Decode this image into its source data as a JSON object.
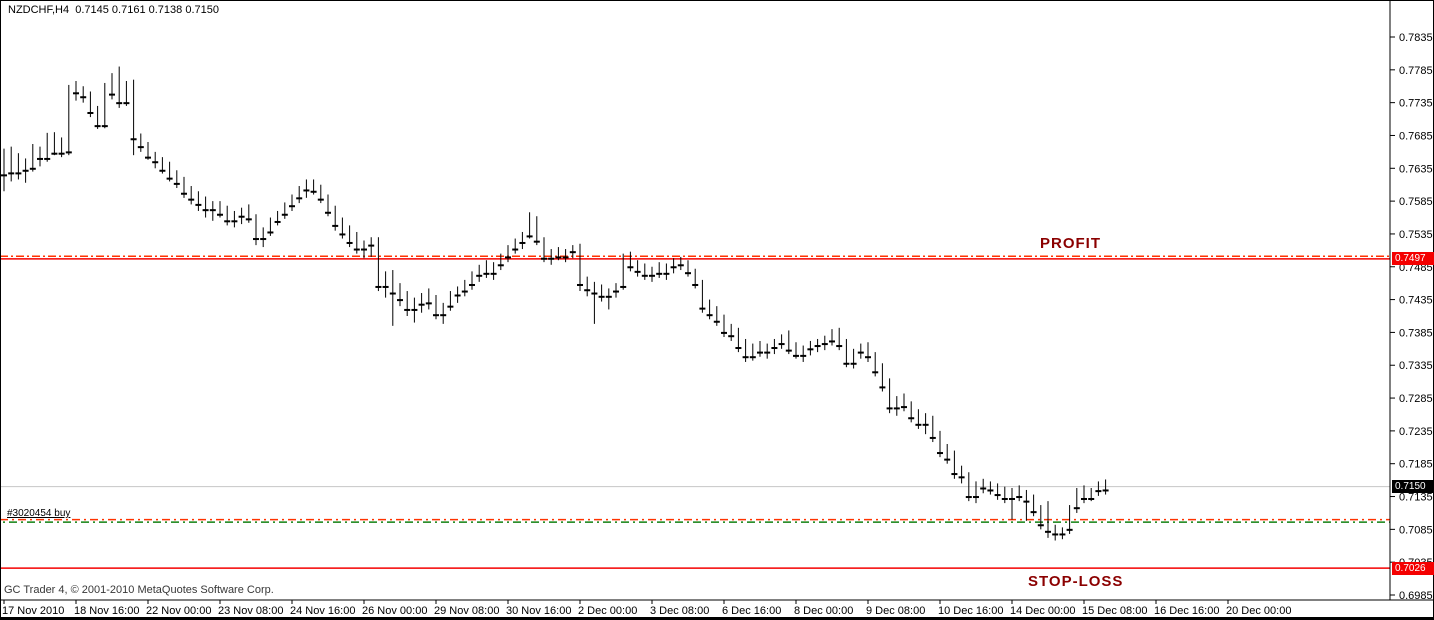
{
  "window": {
    "title": "NZDCHF,H4  0.7145 0.7161 0.7138 0.7150",
    "copyright": "GC Trader 4, © 2001-2010 MetaQuotes Software Corp."
  },
  "annotations": {
    "profit_label": "PROFIT",
    "stop_loss_label": "STOP-LOSS",
    "order_label": "#3020454 buy"
  },
  "badges": {
    "take_profit": "0.7497",
    "current_price": "0.7150",
    "stop_loss": "0.7026"
  },
  "colors": {
    "solid_line_red": "#f40000",
    "dash_line_orange": "#ff3300",
    "dash_line_green": "#108010",
    "current_price_gray": "#c6c6c6",
    "badge_red_bg": "#f40000",
    "badge_black_bg": "#000000",
    "annotation_maroon": "#8b0000",
    "bull_candle": "#ffffff",
    "bear_candle": "#000000",
    "candle_outline": "#000000"
  },
  "chart_data": {
    "type": "candlestick",
    "symbol": "NZDCHF",
    "timeframe": "H4",
    "current_bar": {
      "open": 0.7145,
      "high": 0.7161,
      "low": 0.7138,
      "close": 0.715
    },
    "levels": {
      "take_profit_line": 0.7497,
      "order_tp_dash_line": 0.7501,
      "order_open_line": 0.7098,
      "stop_loss_line": 0.7026,
      "current_price_line": 0.715
    },
    "y_axis": {
      "min": 0.6985,
      "max": 0.7835,
      "step": 0.005,
      "labels": [
        "0.7835",
        "0.7785",
        "0.7735",
        "0.7685",
        "0.7635",
        "0.7585",
        "0.7535",
        "0.7485",
        "0.7435",
        "0.7385",
        "0.7335",
        "0.7285",
        "0.7235",
        "0.7185",
        "0.7135",
        "0.7085",
        "0.7035",
        "0.6985"
      ]
    },
    "x_axis": {
      "bar_interval": 10,
      "labels": [
        "17 Nov 2010",
        "18 Nov 16:00",
        "22 Nov 00:00",
        "23 Nov 08:00",
        "24 Nov 16:00",
        "26 Nov 00:00",
        "29 Nov 08:00",
        "30 Nov 16:00",
        "2 Dec 00:00",
        "3 Dec 08:00",
        "6 Dec 16:00",
        "8 Dec 00:00",
        "9 Dec 08:00",
        "10 Dec 16:00",
        "14 Dec 00:00",
        "15 Dec 08:00",
        "16 Dec 16:00",
        "20 Dec 00:00"
      ]
    },
    "grid": false,
    "candles": [
      [
        0.7625,
        0.7665,
        0.76,
        0.7648
      ],
      [
        0.7655,
        0.7668,
        0.7615,
        0.7628
      ],
      [
        0.7628,
        0.7658,
        0.7618,
        0.764
      ],
      [
        0.7632,
        0.765,
        0.7613,
        0.7645
      ],
      [
        0.7635,
        0.7672,
        0.763,
        0.7658
      ],
      [
        0.7658,
        0.7668,
        0.7638,
        0.765
      ],
      [
        0.765,
        0.7689,
        0.7645,
        0.7675
      ],
      [
        0.7673,
        0.769,
        0.7655,
        0.7658
      ],
      [
        0.7658,
        0.7682,
        0.7652,
        0.7662
      ],
      [
        0.766,
        0.7762,
        0.7655,
        0.7755
      ],
      [
        0.7755,
        0.7768,
        0.7738,
        0.775
      ],
      [
        0.7752,
        0.776,
        0.7735,
        0.7744
      ],
      [
        0.7744,
        0.7752,
        0.7713,
        0.772
      ],
      [
        0.772,
        0.773,
        0.7695,
        0.77
      ],
      [
        0.77,
        0.7765,
        0.7696,
        0.7751
      ],
      [
        0.7751,
        0.778,
        0.774,
        0.7748
      ],
      [
        0.7748,
        0.779,
        0.7727,
        0.7735
      ],
      [
        0.7735,
        0.7768,
        0.773,
        0.7762
      ],
      [
        0.7765,
        0.777,
        0.7655,
        0.768
      ],
      [
        0.768,
        0.7688,
        0.766,
        0.7668
      ],
      [
        0.7668,
        0.7675,
        0.7648,
        0.7652
      ],
      [
        0.7652,
        0.766,
        0.7635,
        0.7645
      ],
      [
        0.7645,
        0.7652,
        0.7627,
        0.7632
      ],
      [
        0.7632,
        0.7645,
        0.7615,
        0.762
      ],
      [
        0.762,
        0.7632,
        0.7605,
        0.7612
      ],
      [
        0.7612,
        0.7622,
        0.759,
        0.7597
      ],
      [
        0.7597,
        0.7608,
        0.758,
        0.7588
      ],
      [
        0.7588,
        0.76,
        0.757,
        0.758
      ],
      [
        0.758,
        0.7592,
        0.756,
        0.7572
      ],
      [
        0.7572,
        0.7585,
        0.7555,
        0.7578
      ],
      [
        0.7578,
        0.7585,
        0.756,
        0.7565
      ],
      [
        0.7565,
        0.7578,
        0.7548,
        0.7555
      ],
      [
        0.7555,
        0.757,
        0.7545,
        0.7562
      ],
      [
        0.7562,
        0.7575,
        0.755,
        0.757
      ],
      [
        0.757,
        0.758,
        0.7552,
        0.7558
      ],
      [
        0.7558,
        0.7565,
        0.7518,
        0.7528
      ],
      [
        0.7528,
        0.7545,
        0.7515,
        0.7538
      ],
      [
        0.7538,
        0.756,
        0.7532,
        0.7554
      ],
      [
        0.7554,
        0.757,
        0.7548,
        0.7565
      ],
      [
        0.7565,
        0.7583,
        0.7558,
        0.7578
      ],
      [
        0.7578,
        0.7595,
        0.757,
        0.759
      ],
      [
        0.759,
        0.7608,
        0.7582,
        0.7602
      ],
      [
        0.7602,
        0.7618,
        0.759,
        0.7612
      ],
      [
        0.7612,
        0.7618,
        0.7595,
        0.76
      ],
      [
        0.76,
        0.761,
        0.7582,
        0.7588
      ],
      [
        0.7588,
        0.7595,
        0.7562,
        0.7568
      ],
      [
        0.7568,
        0.7578,
        0.754,
        0.7548
      ],
      [
        0.7548,
        0.756,
        0.7528,
        0.7535
      ],
      [
        0.7535,
        0.7548,
        0.7515,
        0.7522
      ],
      [
        0.7522,
        0.7538,
        0.7505,
        0.7512
      ],
      [
        0.7512,
        0.7525,
        0.7498,
        0.7518
      ],
      [
        0.7518,
        0.753,
        0.75,
        0.7525
      ],
      [
        0.7525,
        0.753,
        0.7448,
        0.7455
      ],
      [
        0.7455,
        0.7478,
        0.7438,
        0.747
      ],
      [
        0.747,
        0.748,
        0.7395,
        0.7445
      ],
      [
        0.7445,
        0.746,
        0.7425,
        0.7435
      ],
      [
        0.7435,
        0.7448,
        0.741,
        0.742
      ],
      [
        0.742,
        0.7438,
        0.74,
        0.7428
      ],
      [
        0.7428,
        0.7445,
        0.7415,
        0.7438
      ],
      [
        0.7438,
        0.7452,
        0.742,
        0.743
      ],
      [
        0.743,
        0.7442,
        0.7405,
        0.7412
      ],
      [
        0.7412,
        0.743,
        0.7398,
        0.7425
      ],
      [
        0.7425,
        0.7448,
        0.7418,
        0.7442
      ],
      [
        0.7442,
        0.7455,
        0.743,
        0.7448
      ],
      [
        0.7448,
        0.7465,
        0.744,
        0.7458
      ],
      [
        0.7458,
        0.7478,
        0.745,
        0.7472
      ],
      [
        0.7472,
        0.7488,
        0.7462,
        0.748
      ],
      [
        0.748,
        0.7495,
        0.7468,
        0.7475
      ],
      [
        0.7475,
        0.7492,
        0.7465,
        0.7488
      ],
      [
        0.7488,
        0.7505,
        0.748,
        0.75
      ],
      [
        0.75,
        0.7518,
        0.7492,
        0.7512
      ],
      [
        0.7512,
        0.7528,
        0.7505,
        0.7522
      ],
      [
        0.7522,
        0.7538,
        0.7512,
        0.7532
      ],
      [
        0.7532,
        0.7568,
        0.7528,
        0.7558
      ],
      [
        0.7558,
        0.7562,
        0.7518,
        0.7524
      ],
      [
        0.7524,
        0.753,
        0.7492,
        0.7498
      ],
      [
        0.7498,
        0.7512,
        0.7488,
        0.7505
      ],
      [
        0.7505,
        0.7515,
        0.7495,
        0.75
      ],
      [
        0.75,
        0.7512,
        0.7492,
        0.7508
      ],
      [
        0.7508,
        0.7518,
        0.7498,
        0.7512
      ],
      [
        0.7512,
        0.752,
        0.7448,
        0.7458
      ],
      [
        0.7458,
        0.747,
        0.744,
        0.745
      ],
      [
        0.745,
        0.7462,
        0.7398,
        0.7445
      ],
      [
        0.7445,
        0.7458,
        0.7432,
        0.744
      ],
      [
        0.744,
        0.7452,
        0.742,
        0.7448
      ],
      [
        0.7448,
        0.746,
        0.7438,
        0.7455
      ],
      [
        0.7455,
        0.7505,
        0.745,
        0.7495
      ],
      [
        0.7495,
        0.7508,
        0.7478,
        0.7485
      ],
      [
        0.7485,
        0.7495,
        0.747,
        0.7478
      ],
      [
        0.7478,
        0.749,
        0.7465,
        0.7472
      ],
      [
        0.7472,
        0.7485,
        0.7462,
        0.748
      ],
      [
        0.748,
        0.7492,
        0.7468,
        0.7475
      ],
      [
        0.7475,
        0.749,
        0.7465,
        0.7485
      ],
      [
        0.7485,
        0.7498,
        0.7475,
        0.7492
      ],
      [
        0.7492,
        0.75,
        0.748,
        0.7488
      ],
      [
        0.7488,
        0.7495,
        0.747,
        0.7476
      ],
      [
        0.7476,
        0.7482,
        0.7452,
        0.7458
      ],
      [
        0.7458,
        0.7465,
        0.7415,
        0.7422
      ],
      [
        0.7422,
        0.7435,
        0.7405,
        0.7412
      ],
      [
        0.7412,
        0.7425,
        0.7395,
        0.7402
      ],
      [
        0.7402,
        0.7412,
        0.7378,
        0.7385
      ],
      [
        0.7385,
        0.7398,
        0.7372,
        0.738
      ],
      [
        0.738,
        0.7392,
        0.7355,
        0.7362
      ],
      [
        0.7362,
        0.7375,
        0.734,
        0.7348
      ],
      [
        0.7348,
        0.7368,
        0.7342,
        0.736
      ],
      [
        0.736,
        0.7372,
        0.7348,
        0.7355
      ],
      [
        0.7355,
        0.7368,
        0.7345,
        0.7362
      ],
      [
        0.7362,
        0.7375,
        0.7352,
        0.7368
      ],
      [
        0.7368,
        0.7382,
        0.736,
        0.7375
      ],
      [
        0.7375,
        0.7388,
        0.7352,
        0.7358
      ],
      [
        0.7358,
        0.737,
        0.7345,
        0.735
      ],
      [
        0.735,
        0.7365,
        0.734,
        0.736
      ],
      [
        0.736,
        0.7372,
        0.735,
        0.7365
      ],
      [
        0.7365,
        0.7375,
        0.7355,
        0.7368
      ],
      [
        0.7368,
        0.738,
        0.7358,
        0.7372
      ],
      [
        0.7372,
        0.739,
        0.7365,
        0.7385
      ],
      [
        0.7385,
        0.7392,
        0.7358,
        0.7365
      ],
      [
        0.7365,
        0.7375,
        0.7332,
        0.7338
      ],
      [
        0.7338,
        0.736,
        0.733,
        0.7355
      ],
      [
        0.7355,
        0.7368,
        0.7345,
        0.7362
      ],
      [
        0.7362,
        0.737,
        0.734,
        0.7348
      ],
      [
        0.7348,
        0.7355,
        0.7318,
        0.7325
      ],
      [
        0.7325,
        0.7338,
        0.7295,
        0.7302
      ],
      [
        0.7302,
        0.7315,
        0.7262,
        0.727
      ],
      [
        0.727,
        0.7288,
        0.7258,
        0.728
      ],
      [
        0.728,
        0.7292,
        0.7265,
        0.7272
      ],
      [
        0.7272,
        0.728,
        0.7248,
        0.7255
      ],
      [
        0.7255,
        0.7268,
        0.7238,
        0.7245
      ],
      [
        0.7245,
        0.7262,
        0.723,
        0.7252
      ],
      [
        0.7252,
        0.7258,
        0.7218,
        0.7225
      ],
      [
        0.7225,
        0.7235,
        0.7195,
        0.7202
      ],
      [
        0.7202,
        0.7215,
        0.7185,
        0.7192
      ],
      [
        0.7192,
        0.7205,
        0.7162,
        0.717
      ],
      [
        0.717,
        0.7182,
        0.7155,
        0.7165
      ],
      [
        0.7165,
        0.7172,
        0.7128,
        0.7135
      ],
      [
        0.7135,
        0.7158,
        0.7125,
        0.715
      ],
      [
        0.715,
        0.7162,
        0.714,
        0.7148
      ],
      [
        0.7148,
        0.7158,
        0.7138,
        0.7145
      ],
      [
        0.7145,
        0.7155,
        0.713,
        0.7138
      ],
      [
        0.7138,
        0.715,
        0.7125,
        0.7132
      ],
      [
        0.7132,
        0.7148,
        0.71,
        0.7142
      ],
      [
        0.7142,
        0.7152,
        0.7128,
        0.7135
      ],
      [
        0.7135,
        0.7145,
        0.7098,
        0.7128
      ],
      [
        0.7128,
        0.7138,
        0.7105,
        0.7112
      ],
      [
        0.7112,
        0.7122,
        0.7085,
        0.7092
      ],
      [
        0.7092,
        0.7128,
        0.7072,
        0.7082
      ],
      [
        0.7082,
        0.7092,
        0.7068,
        0.7078
      ],
      [
        0.7078,
        0.7088,
        0.707,
        0.7085
      ],
      [
        0.7085,
        0.7122,
        0.7078,
        0.7118
      ],
      [
        0.7118,
        0.7148,
        0.711,
        0.7142
      ],
      [
        0.7142,
        0.7152,
        0.7125,
        0.7132
      ],
      [
        0.7132,
        0.7148,
        0.7128,
        0.7144
      ],
      [
        0.7144,
        0.7158,
        0.7136,
        0.7152
      ],
      [
        0.7145,
        0.7161,
        0.7138,
        0.715
      ]
    ]
  }
}
